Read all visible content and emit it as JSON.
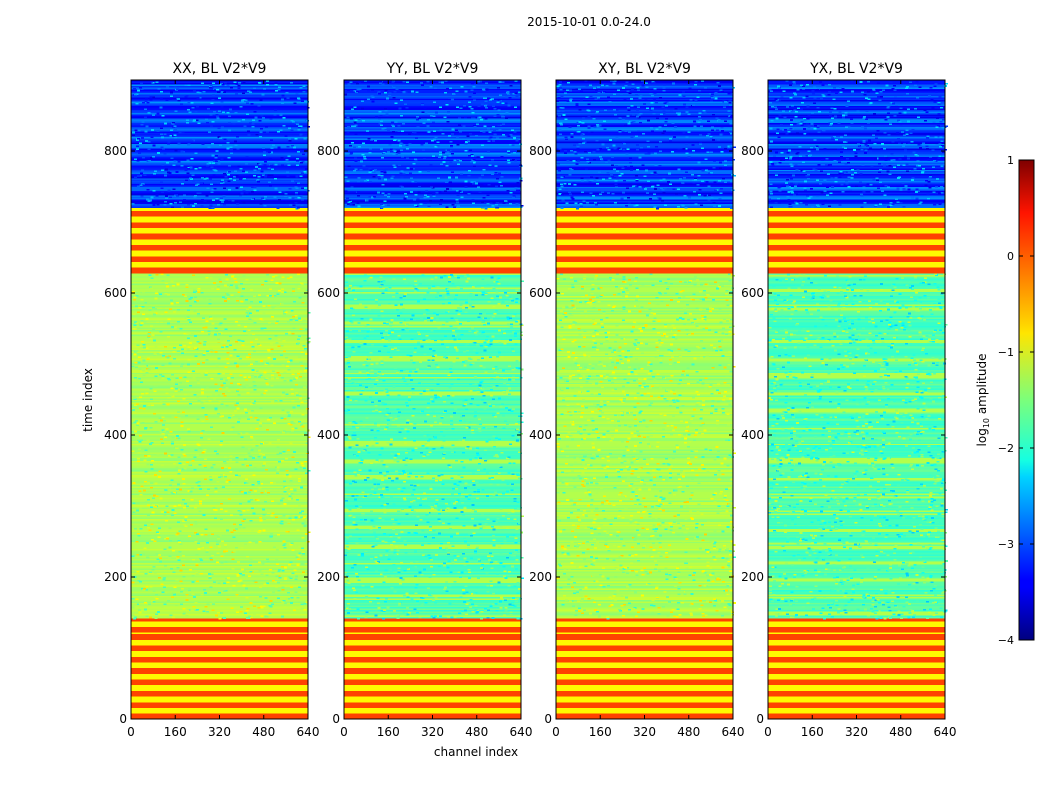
{
  "chart_data": [
    {
      "type": "heatmap",
      "suptitle": "2015-10-01 0.0-24.0",
      "xlabel": "channel index",
      "ylabel": "time index",
      "xlim": [
        0,
        640
      ],
      "ylim": [
        0,
        900
      ],
      "xticks": [
        0,
        160,
        320,
        480,
        640
      ],
      "yticks": [
        0,
        200,
        400,
        600,
        800
      ],
      "panels": [
        {
          "id": "xx",
          "title": "XX, BL V2*V9",
          "background_level": -1.3
        },
        {
          "id": "yy",
          "title": "YY, BL V2*V9",
          "background_level": -1.75
        },
        {
          "id": "xy",
          "title": "XY, BL V2*V9",
          "background_level": -1.3
        },
        {
          "id": "yx",
          "title": "YX, BL V2*V9",
          "background_level": -1.75
        }
      ],
      "time_segments": [
        {
          "from": 0,
          "to": 122,
          "level": 0.05,
          "note": "flagged, periodic stripes"
        },
        {
          "from": 122,
          "to": 142,
          "level": 0.05,
          "note": "flagged block"
        },
        {
          "from": 142,
          "to": 628,
          "level": "panel",
          "note": "noisy visibility data"
        },
        {
          "from": 628,
          "to": 720,
          "level": 0.05,
          "note": "flagged, periodic stripes"
        },
        {
          "from": 720,
          "to": 900,
          "level": -2.9,
          "note": "low amplitude, stripes"
        }
      ],
      "colorbar": {
        "label": "log10 amplitude",
        "label_main": "log",
        "label_sub": "10",
        "label_tail": " amplitude",
        "range": [
          -4,
          1
        ],
        "ticks": [
          {
            "value": 1,
            "label": "1"
          },
          {
            "value": 0,
            "label": "0"
          },
          {
            "value": -1,
            "label": "−1"
          },
          {
            "value": -2,
            "label": "−2"
          },
          {
            "value": -3,
            "label": "−3"
          },
          {
            "value": -4,
            "label": "−4"
          }
        ]
      }
    }
  ]
}
